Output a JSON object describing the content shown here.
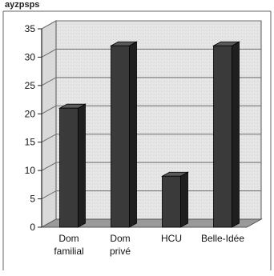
{
  "header_fragment": "ayzpsps",
  "chart_data": {
    "type": "bar",
    "categories": [
      [
        "Dom",
        "familial"
      ],
      [
        "Dom",
        "privé"
      ],
      [
        "HCU"
      ],
      [
        "Belle-Idée"
      ]
    ],
    "values": [
      21,
      32,
      9,
      32
    ],
    "title": "",
    "xlabel": "",
    "ylabel": "",
    "ylim": [
      0,
      35
    ],
    "yticks": [
      0,
      5,
      10,
      15,
      20,
      25,
      30,
      35
    ],
    "grid": true,
    "legend": "none",
    "colors": {
      "bar_front": "#3a3a3a",
      "bar_side": "#1f1f1f",
      "bar_top": "#5a5a5a",
      "wall": "#e3e3e3",
      "floor": "#9a9a9a",
      "grid": "#6d6d6d",
      "frame": "#555555"
    }
  }
}
